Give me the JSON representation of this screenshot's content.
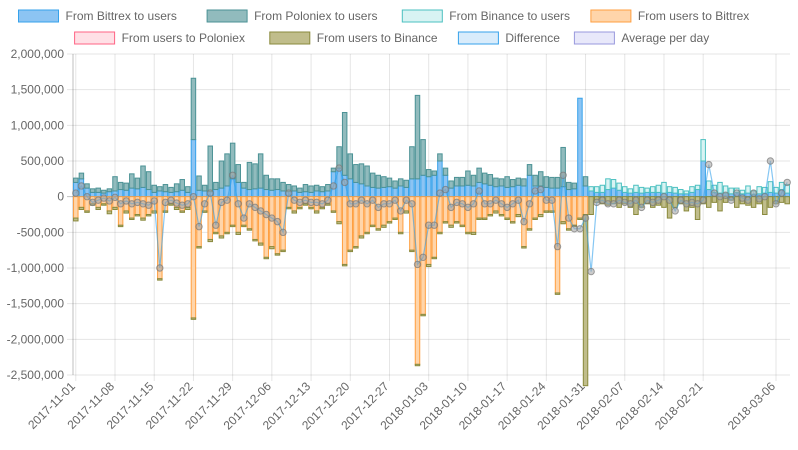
{
  "chart_data": {
    "type": "bar",
    "stacked": true,
    "ylim": [
      -2500000,
      2000000
    ],
    "y_ticks": [
      2000000,
      1500000,
      1000000,
      500000,
      0,
      -500000,
      -1000000,
      -1500000,
      -2000000,
      -2500000
    ],
    "y_tick_labels": [
      "2,000,000",
      "1,500,000",
      "1,000,000",
      "500,000",
      "0",
      "-500,000",
      "-1,000,000",
      "-1,500,000",
      "-2,000,000",
      "-2,500,000"
    ],
    "grid": true,
    "legend_position": "top",
    "x_tick_labels": [
      "2017-11-01",
      "2017-11-08",
      "2017-11-15",
      "2017-11-22",
      "2017-11-29",
      "2017-12-06",
      "2017-12-13",
      "2017-12-20",
      "2017-12-27",
      "2018-01-03",
      "2018-01-10",
      "2018-01-17",
      "2018-01-24",
      "2018-01-31",
      "2018-02-07",
      "2018-02-14",
      "2018-02-21",
      "2018-03-06"
    ],
    "x_tick_positions": [
      0,
      7,
      14,
      21,
      28,
      35,
      42,
      49,
      56,
      63,
      70,
      77,
      84,
      91,
      98,
      105,
      112,
      125
    ],
    "series": [
      {
        "name": "From Bittrex to users",
        "kind": "bar",
        "sign": "positive",
        "color": "#36a2eb",
        "fill": "#8cc4f3",
        "values": [
          200000,
          250000,
          120000,
          60000,
          60000,
          50000,
          70000,
          80000,
          100000,
          90000,
          120000,
          110000,
          130000,
          100000,
          60000,
          80000,
          70000,
          60000,
          70000,
          90000,
          60000,
          800000,
          90000,
          80000,
          70000,
          100000,
          120000,
          150000,
          250000,
          200000,
          120000,
          100000,
          110000,
          120000,
          100000,
          90000,
          100000,
          80000,
          70000,
          80000,
          60000,
          70000,
          60000,
          80000,
          70000,
          80000,
          350000,
          400000,
          300000,
          250000,
          200000,
          180000,
          150000,
          130000,
          120000,
          130000,
          140000,
          120000,
          150000,
          130000,
          250000,
          250000,
          300000,
          280000,
          300000,
          500000,
          300000,
          120000,
          150000,
          150000,
          160000,
          150000,
          200000,
          180000,
          160000,
          140000,
          150000,
          130000,
          140000,
          160000,
          150000,
          300000,
          150000,
          150000,
          130000,
          120000,
          120000,
          140000,
          100000,
          110000,
          1380000,
          150000,
          80000,
          60000,
          60000,
          100000,
          120000,
          90000,
          60000,
          50000,
          60000,
          50000,
          60000,
          60000,
          60000,
          50000,
          60000,
          50000,
          40000,
          40000,
          60000,
          100000,
          500000,
          100000,
          60000,
          50000,
          50000,
          40000,
          60000,
          40000,
          50000,
          30000,
          40000,
          50000,
          60000,
          50000,
          100000,
          50000
        ]
      },
      {
        "name": "From Poloniex to users",
        "kind": "bar",
        "sign": "positive",
        "color": "#4b9295",
        "fill": "#91bbbd",
        "values": [
          60000,
          80000,
          60000,
          50000,
          60000,
          40000,
          40000,
          200000,
          100000,
          100000,
          200000,
          150000,
          300000,
          250000,
          100000,
          60000,
          100000,
          70000,
          110000,
          150000,
          80000,
          860000,
          200000,
          80000,
          640000,
          100000,
          380000,
          450000,
          500000,
          250000,
          80000,
          380000,
          350000,
          480000,
          200000,
          160000,
          150000,
          120000,
          100000,
          70000,
          60000,
          100000,
          90000,
          80000,
          70000,
          90000,
          50000,
          300000,
          880000,
          350000,
          250000,
          280000,
          280000,
          200000,
          180000,
          150000,
          120000,
          100000,
          100000,
          100000,
          450000,
          1170000,
          500000,
          100000,
          60000,
          100000,
          100000,
          100000,
          120000,
          120000,
          200000,
          150000,
          200000,
          150000,
          150000,
          120000,
          100000,
          150000,
          100000,
          100000,
          100000,
          150000,
          150000,
          200000,
          150000,
          150000,
          150000,
          550000,
          100000,
          80000,
          0,
          130000,
          0,
          0,
          0,
          0,
          0,
          0,
          0,
          0,
          0,
          0,
          0,
          0,
          0,
          0,
          0,
          0,
          0,
          0,
          0,
          0,
          0,
          0,
          0,
          0,
          0,
          0,
          0,
          0,
          0,
          0,
          0,
          0,
          0,
          0,
          0,
          0
        ]
      },
      {
        "name": "From Binance to users",
        "kind": "bar",
        "sign": "positive",
        "color": "#4bc0c0",
        "fill": "#d8f3f3",
        "values": [
          0,
          0,
          0,
          0,
          0,
          0,
          0,
          0,
          0,
          0,
          0,
          0,
          0,
          0,
          0,
          0,
          0,
          0,
          0,
          0,
          0,
          0,
          0,
          0,
          0,
          0,
          0,
          0,
          0,
          0,
          0,
          0,
          0,
          0,
          0,
          0,
          0,
          0,
          0,
          0,
          0,
          0,
          0,
          0,
          0,
          0,
          0,
          0,
          0,
          0,
          0,
          0,
          0,
          0,
          0,
          0,
          0,
          0,
          0,
          0,
          0,
          0,
          0,
          0,
          0,
          0,
          0,
          0,
          0,
          0,
          0,
          0,
          0,
          0,
          0,
          0,
          0,
          0,
          0,
          0,
          0,
          0,
          0,
          0,
          0,
          0,
          0,
          0,
          0,
          0,
          0,
          0,
          60000,
          80000,
          100000,
          150000,
          120000,
          100000,
          80000,
          60000,
          100000,
          80000,
          60000,
          80000,
          100000,
          150000,
          80000,
          80000,
          60000,
          40000,
          80000,
          60000,
          300000,
          120000,
          100000,
          150000,
          100000,
          80000,
          60000,
          50000,
          100000,
          50000,
          100000,
          80000,
          150000,
          80000,
          100000,
          120000
        ]
      },
      {
        "name": "From users to Bittrex",
        "kind": "bar",
        "sign": "negative",
        "color": "#ff9f40",
        "fill": "#ffd5aa",
        "values": [
          -300000,
          -150000,
          -200000,
          -100000,
          -150000,
          -100000,
          -200000,
          -150000,
          -400000,
          -200000,
          -300000,
          -250000,
          -300000,
          -250000,
          -200000,
          -1150000,
          -200000,
          -100000,
          -150000,
          -200000,
          -150000,
          -1700000,
          -700000,
          -200000,
          -600000,
          -500000,
          -550000,
          -500000,
          -400000,
          -500000,
          -400000,
          -450000,
          -600000,
          -650000,
          -850000,
          -700000,
          -800000,
          -750000,
          -150000,
          -200000,
          -150000,
          -100000,
          -150000,
          -200000,
          -150000,
          -100000,
          -200000,
          -350000,
          -950000,
          -750000,
          -700000,
          -550000,
          -500000,
          -400000,
          -450000,
          -400000,
          -350000,
          -300000,
          -500000,
          -200000,
          -750000,
          -2350000,
          -1650000,
          -950000,
          -850000,
          -500000,
          -350000,
          -400000,
          -350000,
          -400000,
          -500000,
          -500000,
          -300000,
          -300000,
          -250000,
          -200000,
          -250000,
          -300000,
          -350000,
          -250000,
          -700000,
          -450000,
          -300000,
          -250000,
          -200000,
          -200000,
          -1350000,
          -350000,
          -450000,
          -400000,
          -300000,
          -250000,
          0,
          0,
          0,
          0,
          0,
          0,
          0,
          0,
          0,
          0,
          0,
          0,
          0,
          0,
          0,
          0,
          0,
          0,
          0,
          0,
          0,
          0,
          0,
          0,
          0,
          0,
          0,
          0,
          0,
          0,
          0,
          0,
          0,
          0,
          0,
          0
        ]
      },
      {
        "name": "From users to Poloniex",
        "kind": "bar",
        "sign": "negative",
        "color": "#ff6384",
        "fill": "#ffe0e6",
        "values": [
          0,
          0,
          0,
          0,
          0,
          0,
          0,
          0,
          0,
          0,
          0,
          0,
          0,
          0,
          0,
          0,
          0,
          0,
          0,
          0,
          0,
          0,
          0,
          0,
          0,
          0,
          0,
          0,
          0,
          0,
          0,
          0,
          0,
          0,
          0,
          0,
          0,
          0,
          0,
          0,
          0,
          0,
          0,
          0,
          0,
          0,
          0,
          0,
          0,
          0,
          0,
          0,
          0,
          0,
          0,
          0,
          0,
          0,
          0,
          0,
          0,
          0,
          0,
          0,
          0,
          0,
          0,
          0,
          0,
          0,
          0,
          0,
          0,
          0,
          0,
          0,
          0,
          0,
          0,
          0,
          0,
          0,
          0,
          0,
          0,
          0,
          0,
          0,
          0,
          0,
          0,
          0,
          0,
          0,
          0,
          0,
          0,
          0,
          0,
          0,
          0,
          0,
          0,
          0,
          0,
          0,
          0,
          0,
          0,
          0,
          0,
          0,
          0,
          0,
          0,
          0,
          0,
          0,
          0,
          0,
          0,
          0,
          0,
          0,
          0,
          0,
          0,
          0
        ]
      },
      {
        "name": "From users to Binance",
        "kind": "bar",
        "sign": "negative",
        "color": "#8a8a3d",
        "fill": "#c0bd8b",
        "values": [
          -40000,
          -30000,
          -20000,
          -20000,
          -30000,
          -20000,
          -40000,
          -30000,
          -20000,
          -30000,
          -20000,
          -20000,
          -30000,
          -20000,
          -30000,
          -20000,
          -20000,
          -20000,
          -30000,
          -20000,
          -30000,
          -20000,
          -20000,
          -20000,
          -30000,
          -20000,
          -30000,
          -20000,
          -20000,
          -30000,
          -20000,
          -20000,
          -20000,
          -30000,
          -20000,
          -30000,
          -20000,
          -20000,
          -20000,
          -30000,
          -20000,
          -20000,
          -20000,
          -30000,
          -20000,
          -20000,
          -20000,
          -30000,
          -20000,
          -20000,
          -20000,
          -30000,
          -20000,
          -20000,
          -20000,
          -30000,
          -20000,
          -20000,
          -20000,
          -30000,
          -20000,
          -20000,
          -20000,
          -30000,
          -20000,
          -20000,
          -20000,
          -30000,
          -20000,
          -20000,
          -20000,
          -30000,
          -20000,
          -20000,
          -20000,
          -30000,
          -20000,
          -20000,
          -20000,
          -30000,
          -20000,
          -20000,
          -20000,
          -30000,
          -20000,
          -20000,
          -20000,
          -30000,
          -20000,
          -20000,
          -20000,
          -2400000,
          -250000,
          -80000,
          -100000,
          -120000,
          -100000,
          -150000,
          -100000,
          -150000,
          -250000,
          -150000,
          -100000,
          -150000,
          -120000,
          -150000,
          -300000,
          -150000,
          -100000,
          -200000,
          -150000,
          -320000,
          -100000,
          -150000,
          -80000,
          -200000,
          -80000,
          -50000,
          -150000,
          -100000,
          -120000,
          -150000,
          -100000,
          -250000,
          -150000,
          -100000,
          -80000,
          -100000
        ]
      },
      {
        "name": "Difference",
        "kind": "line",
        "color": "#36a2eb",
        "fill": "#d9ecfb",
        "values": [
          50000,
          150000,
          0,
          -80000,
          -50000,
          -20000,
          -60000,
          -10000,
          -100000,
          -60000,
          -100000,
          -80000,
          -100000,
          -120000,
          -60000,
          -1000000,
          -80000,
          -50000,
          -90000,
          -120000,
          -100000,
          0,
          -420000,
          -100000,
          50000,
          -400000,
          -80000,
          -50000,
          300000,
          -100000,
          -300000,
          -100000,
          -150000,
          -200000,
          -250000,
          -300000,
          -350000,
          -500000,
          50000,
          -50000,
          -80000,
          -50000,
          -80000,
          -80000,
          -100000,
          -50000,
          150000,
          400000,
          200000,
          -100000,
          -100000,
          -50000,
          -100000,
          -50000,
          -150000,
          -100000,
          -100000,
          -50000,
          -200000,
          -50000,
          -100000,
          -950000,
          -850000,
          -400000,
          -400000,
          50000,
          100000,
          -150000,
          -80000,
          -100000,
          -150000,
          -100000,
          80000,
          -100000,
          -100000,
          -50000,
          -100000,
          -150000,
          -100000,
          -50000,
          -350000,
          -100000,
          80000,
          100000,
          -50000,
          -50000,
          -700000,
          300000,
          -300000,
          -450000,
          -450000,
          -300000,
          -1050000,
          -80000,
          -50000,
          -100000,
          -100000,
          -50000,
          -80000,
          -100000,
          -50000,
          -150000,
          -50000,
          -80000,
          -50000,
          0,
          -50000,
          -200000,
          -50000,
          -100000,
          -80000,
          -100000,
          -50000,
          450000,
          50000,
          0,
          20000,
          -50000,
          50000,
          -20000,
          -50000,
          50000,
          -30000,
          0,
          500000,
          -100000,
          50000,
          200000
        ]
      },
      {
        "name": "Average per day",
        "kind": "line",
        "color": "#9999dd",
        "fill": "#e8e8fa",
        "values": []
      }
    ]
  }
}
